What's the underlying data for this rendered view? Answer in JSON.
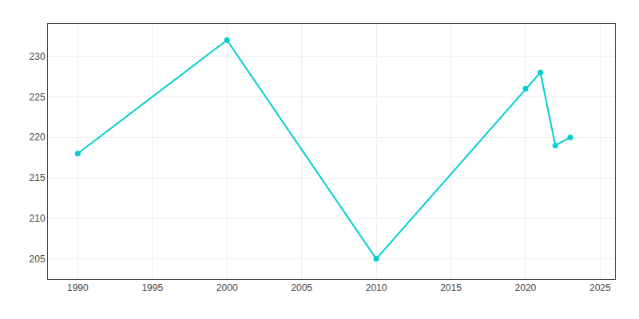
{
  "chart_data": {
    "type": "line",
    "x": [
      1990,
      2000,
      2010,
      2020,
      2021,
      2022,
      2023
    ],
    "values": [
      218,
      232,
      205,
      226,
      228,
      219,
      220
    ],
    "color": "#00CED1",
    "marker": "circle",
    "xlim": [
      1988,
      2026
    ],
    "ylim": [
      202.5,
      234
    ],
    "xticks": [
      1990,
      1995,
      2000,
      2005,
      2010,
      2015,
      2020,
      2025
    ],
    "yticks": [
      205,
      210,
      215,
      220,
      225,
      230
    ],
    "grid": true
  }
}
